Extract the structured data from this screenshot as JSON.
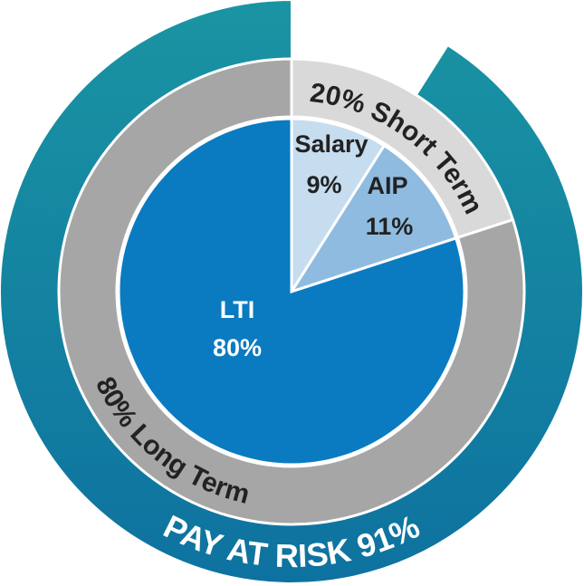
{
  "chart_data": {
    "type": "nested-pie",
    "categories": [
      "Salary",
      "AIP",
      "LTI"
    ],
    "values": [
      9,
      11,
      80
    ],
    "value_labels": [
      "9%",
      "11%",
      "80%"
    ],
    "colors": [
      "#c6dcef",
      "#8fbbe0",
      "#0a7bc1"
    ],
    "groups": {
      "labels": [
        "20% Short Term",
        "80% Long Term"
      ],
      "values": [
        20,
        80
      ],
      "colors": [
        "#d9d9d9",
        "#a6a6a6"
      ]
    },
    "outer": {
      "label": "PAY AT RISK 91%",
      "value": 91,
      "color": "#15899f"
    }
  }
}
